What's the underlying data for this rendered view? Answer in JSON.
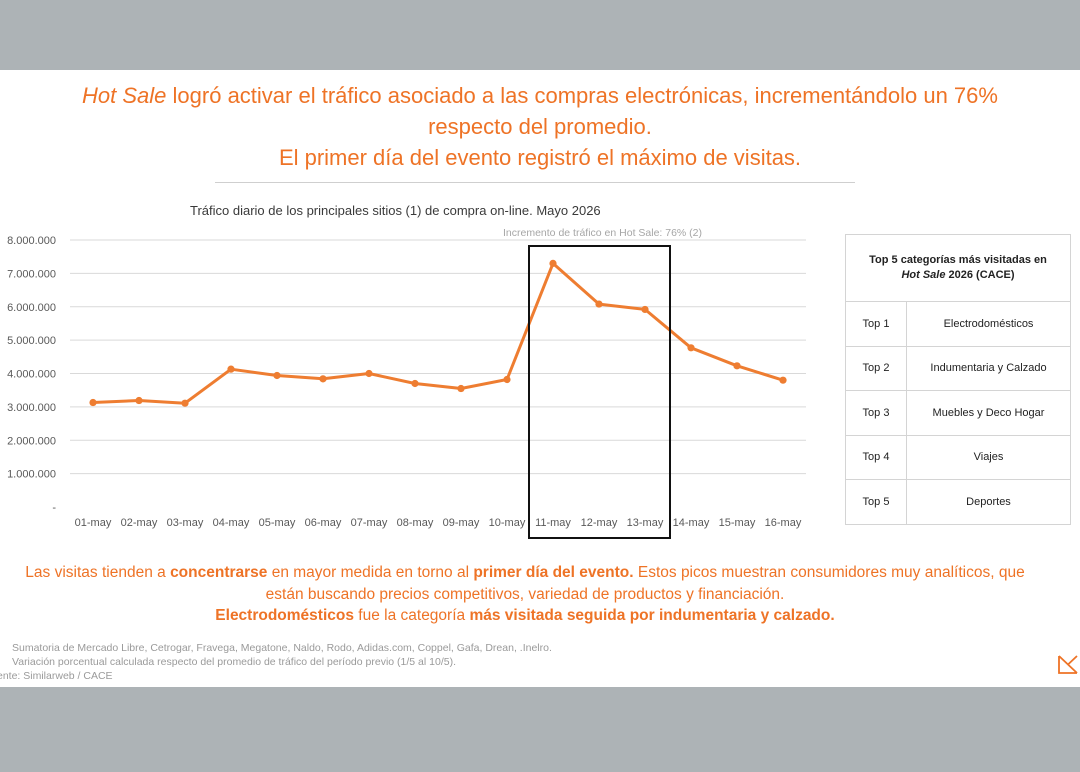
{
  "headline": {
    "line1_em": "Hot Sale",
    "line1_rest": " logró activar el tráfico asociado a las compras electrónicas, incrementándolo un 76%",
    "line2": "respecto del promedio.",
    "line3": "El primer día del evento registró el máximo de visitas."
  },
  "chart_data": {
    "type": "line",
    "title": "Tráfico diario de los principales sitios (1) de compra on-line. Mayo 2026",
    "annotation": "Incremento de tráfico en Hot Sale: 76% (2)",
    "categories": [
      "01-may",
      "02-may",
      "03-may",
      "04-may",
      "05-may",
      "06-may",
      "07-may",
      "08-may",
      "09-may",
      "10-may",
      "11-may",
      "12-may",
      "13-may",
      "14-may",
      "15-may",
      "16-may"
    ],
    "series": [
      {
        "values": [
          3130000,
          3190000,
          3110000,
          4130000,
          3940000,
          3840000,
          4000000,
          3700000,
          3550000,
          3820000,
          7300000,
          6080000,
          5920000,
          4770000,
          4230000,
          3800000
        ]
      }
    ],
    "ylim": [
      0,
      8000000
    ],
    "yticks": [
      0,
      1000000,
      2000000,
      3000000,
      4000000,
      5000000,
      6000000,
      7000000,
      8000000
    ],
    "ytick_labels": [
      "-",
      "1.000.000",
      "2.000.000",
      "3.000.000",
      "4.000.000",
      "5.000.000",
      "6.000.000",
      "7.000.000",
      "8.000.000"
    ],
    "highlight": {
      "from": "11-may",
      "to": "13-may"
    },
    "grid": true,
    "legend": "none",
    "color": "#ee7d31"
  },
  "top5": {
    "title_line1": "Top 5 categorías más visitadas en",
    "title_em": "Hot Sale",
    "title_rest": " 2026  (CACE)",
    "rows": [
      {
        "rank": "Top 1",
        "category": "Electrodomésticos"
      },
      {
        "rank": "Top 2",
        "category": "Indumentaria y Calzado"
      },
      {
        "rank": "Top 3",
        "category": "Muebles y Deco Hogar"
      },
      {
        "rank": "Top 4",
        "category": "Viajes"
      },
      {
        "rank": "Top 5",
        "category": "Deportes"
      }
    ]
  },
  "summary": {
    "p1": "Las visitas tienden a ",
    "b1": "concentrarse",
    "p2": " en mayor medida en torno al ",
    "b2": "primer día del evento.",
    "p3": " Estos picos muestran consumidores muy analíticos, que están buscando precios competitivos, variedad de productos y financiación.",
    "b3": "Electrodomésticos",
    "p4": " fue la categoría ",
    "b4": "más visitada seguida por indumentaria y calzado."
  },
  "footnotes": {
    "f1": "Sumatoria de Mercado Libre, Cetrogar, Fravega, Megatone, Naldo, Rodo, Adidas.com, Coppel, Gafa, Drean, .Inelro.",
    "f2": "Variación porcentual calculada respecto del promedio de tráfico del período previo (1/5 al 10/5).",
    "f3": "ente: Similarweb / CACE"
  }
}
